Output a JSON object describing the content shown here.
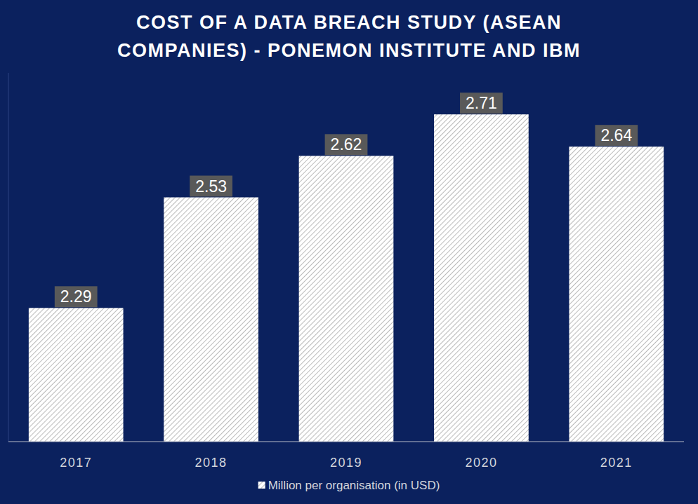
{
  "chart_data": {
    "type": "bar",
    "title": "COST OF A DATA BREACH STUDY (ASEAN COMPANIES) - PONEMON INSTITUTE AND IBM",
    "categories": [
      "2017",
      "2018",
      "2019",
      "2020",
      "2021"
    ],
    "series": [
      {
        "name": "Million per organisation (in USD)",
        "color": "#ffffff",
        "values": [
          2.29,
          2.53,
          2.62,
          2.71,
          2.64
        ]
      }
    ],
    "ylim": [
      2,
      2.8
    ],
    "data_labels": true,
    "tick_labels": "x",
    "grid": false,
    "legend": "bottom"
  }
}
